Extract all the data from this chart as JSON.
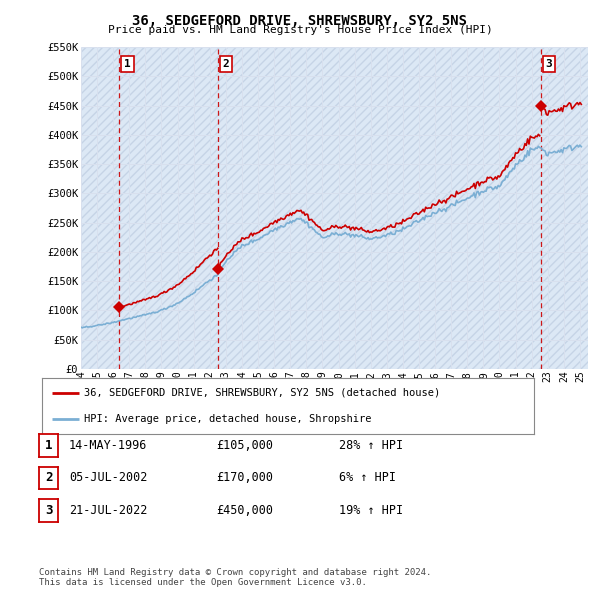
{
  "title": "36, SEDGEFORD DRIVE, SHREWSBURY, SY2 5NS",
  "subtitle": "Price paid vs. HM Land Registry's House Price Index (HPI)",
  "ylim": [
    0,
    550000
  ],
  "yticks": [
    0,
    50000,
    100000,
    150000,
    200000,
    250000,
    300000,
    350000,
    400000,
    450000,
    500000,
    550000
  ],
  "ytick_labels": [
    "£0",
    "£50K",
    "£100K",
    "£150K",
    "£200K",
    "£250K",
    "£300K",
    "£350K",
    "£400K",
    "£450K",
    "£500K",
    "£550K"
  ],
  "xmin": 1994.0,
  "xmax": 2025.5,
  "transactions": [
    {
      "year": 1996.37,
      "price": 105000,
      "label": "1"
    },
    {
      "year": 2002.51,
      "price": 170000,
      "label": "2"
    },
    {
      "year": 2022.55,
      "price": 450000,
      "label": "3"
    }
  ],
  "transaction_vlines": [
    1996.37,
    2002.51,
    2022.55
  ],
  "hpi_color": "#7BAFD4",
  "price_color": "#cc0000",
  "dot_color": "#cc0000",
  "vline_color": "#cc0000",
  "grid_color": "#c8d4e8",
  "bg_color": "#dce8f5",
  "legend_entries": [
    "36, SEDGEFORD DRIVE, SHREWSBURY, SY2 5NS (detached house)",
    "HPI: Average price, detached house, Shropshire"
  ],
  "table_rows": [
    {
      "num": "1",
      "date": "14-MAY-1996",
      "price": "£105,000",
      "change": "28% ↑ HPI"
    },
    {
      "num": "2",
      "date": "05-JUL-2002",
      "price": "£170,000",
      "change": "6% ↑ HPI"
    },
    {
      "num": "3",
      "date": "21-JUL-2022",
      "price": "£450,000",
      "change": "19% ↑ HPI"
    }
  ],
  "footnote": "Contains HM Land Registry data © Crown copyright and database right 2024.\nThis data is licensed under the Open Government Licence v3.0.",
  "xtick_years": [
    1994,
    1995,
    1996,
    1997,
    1998,
    1999,
    2000,
    2001,
    2002,
    2003,
    2004,
    2005,
    2006,
    2007,
    2008,
    2009,
    2010,
    2011,
    2012,
    2013,
    2014,
    2015,
    2016,
    2017,
    2018,
    2019,
    2020,
    2021,
    2022,
    2023,
    2024,
    2025
  ],
  "xtick_labels": [
    "94",
    "95",
    "96",
    "97",
    "98",
    "99",
    "00",
    "01",
    "02",
    "03",
    "04",
    "05",
    "06",
    "07",
    "08",
    "09",
    "10",
    "11",
    "12",
    "13",
    "14",
    "15",
    "16",
    "17",
    "18",
    "19",
    "20",
    "21",
    "22",
    "23",
    "24",
    "25"
  ]
}
